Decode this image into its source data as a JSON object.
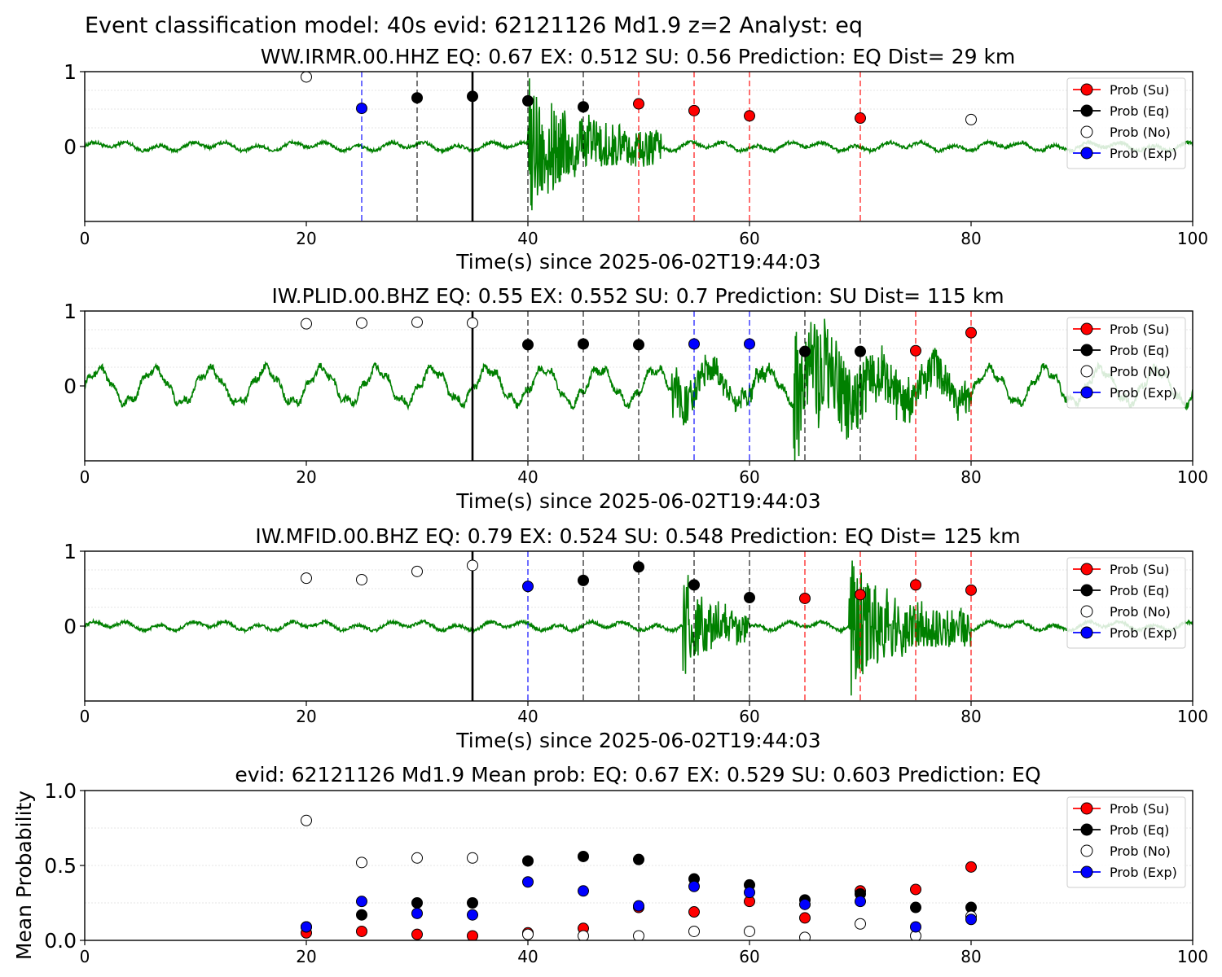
{
  "figure_title": "Event classification model: 40s evid: 62121126 Md1.9 z=2 Analyst: eq",
  "legend_entries": [
    {
      "label": "Prob (Su)",
      "color": "#ff0000",
      "line": true
    },
    {
      "label": "Prob (Eq)",
      "color": "#000000",
      "line": true
    },
    {
      "label": "Prob (No)",
      "color": "#ffffff",
      "line": false
    },
    {
      "label": "Prob (Exp)",
      "color": "#0000ff",
      "line": true
    }
  ],
  "colors": {
    "su": "#ff0000",
    "eq": "#000000",
    "no": "#ffffff",
    "exp": "#0000ff",
    "waveform": "#008000"
  },
  "chart_data": [
    {
      "type": "scatter",
      "title": "WW.IRMR.00.HHZ   EQ: 0.67  EX: 0.512  SU: 0.56   Prediction: EQ    Dist= 29 km",
      "xlabel": "Time(s) since 2025-06-02T19:44:03",
      "ylabel": "",
      "xlim": [
        0,
        100
      ],
      "ylim": [
        -1,
        1
      ],
      "xticks": [
        "0",
        "20",
        "40",
        "60",
        "80",
        "100"
      ],
      "yticks": [
        "0",
        "1"
      ],
      "reference_line_x": 35,
      "waveform_bursts": [
        {
          "start": 40,
          "end": 52,
          "amp": 0.95
        }
      ],
      "points": [
        {
          "x": 20,
          "y": 0.93,
          "class": "no"
        },
        {
          "x": 25,
          "y": 0.51,
          "class": "exp"
        },
        {
          "x": 30,
          "y": 0.65,
          "class": "eq"
        },
        {
          "x": 35,
          "y": 0.67,
          "class": "eq"
        },
        {
          "x": 40,
          "y": 0.61,
          "class": "eq"
        },
        {
          "x": 45,
          "y": 0.53,
          "class": "eq"
        },
        {
          "x": 50,
          "y": 0.57,
          "class": "su"
        },
        {
          "x": 55,
          "y": 0.48,
          "class": "su"
        },
        {
          "x": 60,
          "y": 0.41,
          "class": "su"
        },
        {
          "x": 70,
          "y": 0.38,
          "class": "su"
        },
        {
          "x": 80,
          "y": 0.36,
          "class": "no"
        }
      ]
    },
    {
      "type": "scatter",
      "title": "IW.PLID.00.BHZ   EQ: 0.55  EX: 0.552  SU: 0.7   Prediction: SU    Dist= 115 km",
      "xlabel": "Time(s) since 2025-06-02T19:44:03",
      "ylabel": "",
      "xlim": [
        0,
        100
      ],
      "ylim": [
        -1,
        1
      ],
      "xticks": [
        "0",
        "20",
        "40",
        "60",
        "80",
        "100"
      ],
      "yticks": [
        "0",
        "1"
      ],
      "reference_line_x": 35,
      "waveform_bursts": [
        {
          "start": 53,
          "end": 62,
          "amp": 0.4
        },
        {
          "start": 64,
          "end": 80,
          "amp": 0.95
        }
      ],
      "points": [
        {
          "x": 20,
          "y": 0.83,
          "class": "no"
        },
        {
          "x": 25,
          "y": 0.84,
          "class": "no"
        },
        {
          "x": 30,
          "y": 0.85,
          "class": "no"
        },
        {
          "x": 35,
          "y": 0.84,
          "class": "no"
        },
        {
          "x": 40,
          "y": 0.55,
          "class": "eq"
        },
        {
          "x": 45,
          "y": 0.56,
          "class": "eq"
        },
        {
          "x": 50,
          "y": 0.55,
          "class": "eq"
        },
        {
          "x": 55,
          "y": 0.56,
          "class": "exp"
        },
        {
          "x": 60,
          "y": 0.56,
          "class": "exp"
        },
        {
          "x": 65,
          "y": 0.46,
          "class": "eq"
        },
        {
          "x": 70,
          "y": 0.46,
          "class": "eq"
        },
        {
          "x": 75,
          "y": 0.47,
          "class": "su"
        },
        {
          "x": 80,
          "y": 0.71,
          "class": "su"
        }
      ]
    },
    {
      "type": "scatter",
      "title": "IW.MFID.00.BHZ   EQ: 0.79  EX: 0.524  SU: 0.548   Prediction: EQ    Dist= 125 km",
      "xlabel": "Time(s) since 2025-06-02T19:44:03",
      "ylabel": "",
      "xlim": [
        0,
        100
      ],
      "ylim": [
        -1,
        1
      ],
      "xticks": [
        "0",
        "20",
        "40",
        "60",
        "80",
        "100"
      ],
      "yticks": [
        "0",
        "1"
      ],
      "reference_line_x": 35,
      "waveform_bursts": [
        {
          "start": 54,
          "end": 60,
          "amp": 0.8
        },
        {
          "start": 69,
          "end": 80,
          "amp": 0.95
        }
      ],
      "points": [
        {
          "x": 20,
          "y": 0.64,
          "class": "no"
        },
        {
          "x": 25,
          "y": 0.62,
          "class": "no"
        },
        {
          "x": 30,
          "y": 0.73,
          "class": "no"
        },
        {
          "x": 35,
          "y": 0.81,
          "class": "no"
        },
        {
          "x": 40,
          "y": 0.53,
          "class": "exp"
        },
        {
          "x": 45,
          "y": 0.61,
          "class": "eq"
        },
        {
          "x": 50,
          "y": 0.79,
          "class": "eq"
        },
        {
          "x": 55,
          "y": 0.55,
          "class": "eq"
        },
        {
          "x": 60,
          "y": 0.38,
          "class": "eq"
        },
        {
          "x": 65,
          "y": 0.37,
          "class": "su"
        },
        {
          "x": 70,
          "y": 0.42,
          "class": "su"
        },
        {
          "x": 75,
          "y": 0.55,
          "class": "su"
        },
        {
          "x": 80,
          "y": 0.48,
          "class": "su"
        }
      ]
    },
    {
      "type": "scatter",
      "title": "evid: 62121126  Md1.9   Mean prob:   EQ: 0.67  EX: 0.529  SU: 0.603   Prediction: EQ",
      "xlabel": "",
      "ylabel": "Mean Probability",
      "xlim": [
        0,
        100
      ],
      "ylim": [
        0,
        1
      ],
      "xticks": [
        "0",
        "20",
        "40",
        "60",
        "80",
        "100"
      ],
      "yticks": [
        "0.0",
        "0.5",
        "1.0"
      ],
      "x": [
        20,
        25,
        30,
        35,
        40,
        45,
        50,
        55,
        60,
        65,
        70,
        75,
        80
      ],
      "series": [
        {
          "name": "Prob (Su)",
          "class": "su",
          "values": [
            0.05,
            0.06,
            0.04,
            0.03,
            0.05,
            0.08,
            0.22,
            0.19,
            0.26,
            0.15,
            0.33,
            0.34,
            0.49
          ]
        },
        {
          "name": "Prob (Eq)",
          "class": "eq",
          "values": [
            0.09,
            0.17,
            0.25,
            0.25,
            0.53,
            0.56,
            0.54,
            0.41,
            0.37,
            0.27,
            0.31,
            0.22,
            0.22
          ]
        },
        {
          "name": "Prob (No)",
          "class": "no",
          "values": [
            0.8,
            0.52,
            0.55,
            0.55,
            0.04,
            0.03,
            0.03,
            0.06,
            0.06,
            0.02,
            0.11,
            0.03,
            0.16
          ]
        },
        {
          "name": "Prob (Exp)",
          "class": "exp",
          "values": [
            0.09,
            0.26,
            0.18,
            0.17,
            0.39,
            0.33,
            0.23,
            0.36,
            0.32,
            0.24,
            0.26,
            0.09,
            0.14
          ]
        }
      ]
    }
  ]
}
